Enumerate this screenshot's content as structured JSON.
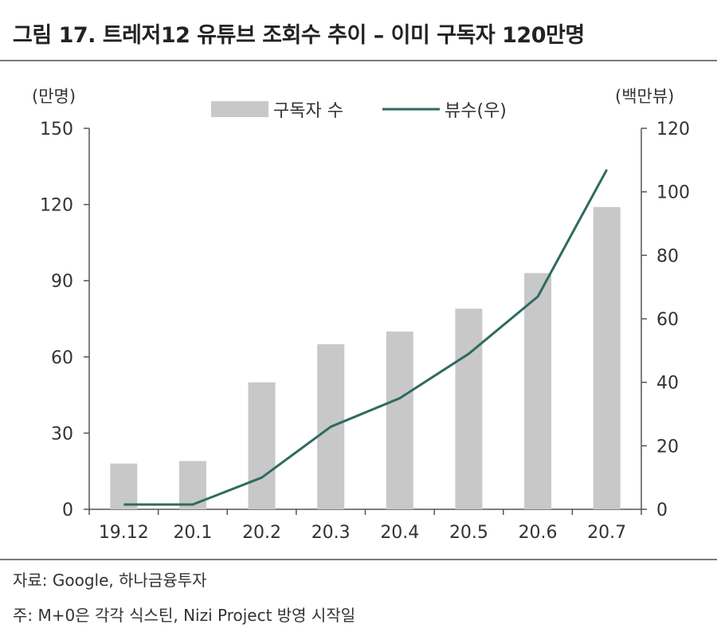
{
  "title": "그림 17. 트레저12 유튜브 조회수 추이 – 이미 구독자 120만명",
  "source": "자료: Google, 하나금융투자",
  "footnote": "주: M+0은 각각 식스틴, Nizi Project 방영 시작일",
  "chart_data": {
    "type": "bar+line",
    "categories": [
      "19.12",
      "20.1",
      "20.2",
      "20.3",
      "20.4",
      "20.5",
      "20.6",
      "20.7"
    ],
    "series": [
      {
        "name": "구독자 수",
        "type": "bar",
        "axis": "left",
        "color": "#c8c8c8",
        "values": [
          18,
          19,
          50,
          65,
          70,
          79,
          93,
          119
        ]
      },
      {
        "name": "뷰수(우)",
        "type": "line",
        "axis": "right",
        "color": "#2e6b60",
        "values": [
          1.5,
          1.5,
          10,
          26,
          35,
          49,
          67,
          107
        ]
      }
    ],
    "y_left": {
      "label": "(만명)",
      "ylim": [
        0,
        150
      ],
      "ticks": [
        0,
        30,
        60,
        90,
        120,
        150
      ]
    },
    "y_right": {
      "label": "(백만뷰)",
      "ylim": [
        0,
        120
      ],
      "ticks": [
        0,
        20,
        40,
        60,
        80,
        100,
        120
      ]
    },
    "legend_position": "top-center",
    "grid": false
  }
}
